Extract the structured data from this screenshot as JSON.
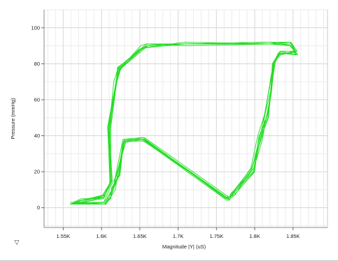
{
  "chart_data": {
    "type": "line",
    "title": "",
    "xlabel": "Magnitude |Y| (uS)",
    "ylabel": "Pressure (mmHg)",
    "xlim": [
      1525,
      1895
    ],
    "ylim": [
      -11,
      110
    ],
    "x_ticks": [
      {
        "value": 1550,
        "label": "1.55K"
      },
      {
        "value": 1600,
        "label": "1.6K"
      },
      {
        "value": 1650,
        "label": "1.65K"
      },
      {
        "value": 1700,
        "label": "1.7K"
      },
      {
        "value": 1750,
        "label": "1.75K"
      },
      {
        "value": 1800,
        "label": "1.8K"
      },
      {
        "value": 1850,
        "label": "1.85K"
      }
    ],
    "y_ticks": [
      {
        "value": 0,
        "label": "0"
      },
      {
        "value": 20,
        "label": "20"
      },
      {
        "value": 40,
        "label": "40"
      },
      {
        "value": 60,
        "label": "60"
      },
      {
        "value": 80,
        "label": "80"
      },
      {
        "value": 100,
        "label": "100"
      }
    ],
    "grid": true,
    "line_color": "#22dd22",
    "series": [
      {
        "x": [
          1562,
          1603,
          1607,
          1612,
          1620,
          1630,
          1657,
          1762,
          1771,
          1799,
          1810,
          1815,
          1822,
          1826,
          1832,
          1852,
          1846,
          1820,
          1711,
          1660,
          1655,
          1624,
          1619,
          1609,
          1613,
          1602,
          1573,
          1562
        ],
        "y": [
          2,
          3,
          7,
          12,
          18,
          38,
          38,
          5,
          7,
          22,
          38,
          50,
          65,
          82,
          85,
          87,
          90,
          91,
          91,
          90,
          88,
          77,
          70,
          45,
          15,
          7,
          4,
          2
        ]
      },
      {
        "x": [
          1564,
          1606,
          1611,
          1617,
          1623,
          1628,
          1654,
          1767,
          1771,
          1796,
          1807,
          1813,
          1819,
          1824,
          1831,
          1856,
          1846,
          1819,
          1708,
          1659,
          1650,
          1625,
          1620,
          1610,
          1611,
          1603,
          1576,
          1564
        ],
        "y": [
          2,
          3,
          5,
          12,
          18,
          38,
          39,
          4,
          8,
          21,
          40,
          52,
          67,
          80,
          86,
          85,
          92,
          91,
          91,
          90,
          88,
          77,
          70,
          44,
          14,
          6,
          3,
          2
        ]
      },
      {
        "x": [
          1559,
          1602,
          1610,
          1614,
          1622,
          1630,
          1656,
          1763,
          1768,
          1799,
          1807,
          1816,
          1822,
          1824,
          1834,
          1852,
          1847,
          1822,
          1707,
          1658,
          1651,
          1626,
          1619,
          1611,
          1611,
          1604,
          1572,
          1559
        ],
        "y": [
          2,
          3,
          6,
          11,
          18,
          38,
          38,
          6,
          6,
          20,
          38,
          51,
          66,
          80,
          86,
          86,
          92,
          92,
          91,
          91,
          90,
          78,
          71,
          44,
          14,
          7,
          4,
          2
        ]
      },
      {
        "x": [
          1562,
          1605,
          1611,
          1615,
          1618,
          1627,
          1653,
          1764,
          1771,
          1800,
          1805,
          1817,
          1821,
          1823,
          1834,
          1855,
          1847,
          1823,
          1708,
          1659,
          1650,
          1622,
          1616,
          1610,
          1614,
          1601,
          1575,
          1562
        ],
        "y": [
          2,
          2,
          7,
          10,
          17,
          36,
          38,
          4,
          6,
          20,
          39,
          52,
          65,
          80,
          85,
          87,
          92,
          91,
          90,
          91,
          88,
          78,
          70,
          44,
          15,
          5,
          3,
          2
        ]
      },
      {
        "x": [
          1563,
          1606,
          1612,
          1618,
          1621,
          1631,
          1657,
          1764,
          1770,
          1795,
          1804,
          1813,
          1819,
          1825,
          1832,
          1854,
          1849,
          1820,
          1709,
          1661,
          1649,
          1622,
          1620,
          1612,
          1612,
          1603,
          1574,
          1563
        ],
        "y": [
          3,
          2,
          6,
          10,
          19,
          37,
          37,
          5,
          7,
          22,
          40,
          52,
          66,
          80,
          86,
          85,
          90,
          92,
          91,
          89,
          88,
          77,
          71,
          44,
          15,
          5,
          5,
          3
        ]
      },
      {
        "x": [
          1559,
          1606,
          1612,
          1613,
          1624,
          1629,
          1655,
          1766,
          1770,
          1796,
          1810,
          1813,
          1822,
          1823,
          1833,
          1853,
          1849,
          1823,
          1709,
          1657,
          1651,
          1621,
          1620,
          1608,
          1611,
          1604,
          1572,
          1559
        ],
        "y": [
          3,
          3,
          6,
          11,
          18,
          37,
          37,
          5,
          8,
          22,
          40,
          51,
          67,
          80,
          87,
          85,
          91,
          91,
          92,
          89,
          88,
          77,
          70,
          45,
          14,
          7,
          3,
          3
        ]
      },
      {
        "x": [
          1564,
          1606,
          1612,
          1615,
          1624,
          1628,
          1656,
          1766,
          1774,
          1796,
          1809,
          1818,
          1821,
          1827,
          1834,
          1855,
          1846,
          1823,
          1707,
          1658,
          1653,
          1623,
          1620,
          1609,
          1613,
          1603,
          1574,
          1564
        ],
        "y": [
          2,
          3,
          5,
          11,
          19,
          37,
          39,
          6,
          7,
          21,
          40,
          50,
          66,
          81,
          87,
          87,
          92,
          92,
          91,
          90,
          88,
          77,
          70,
          45,
          14,
          6,
          4,
          2
        ]
      },
      {
        "x": [
          1560,
          1604,
          1609,
          1616,
          1619,
          1632,
          1655,
          1766,
          1769,
          1798,
          1806,
          1817,
          1822,
          1825,
          1831,
          1856,
          1847,
          1820,
          1707,
          1659,
          1653,
          1621,
          1619,
          1608,
          1613,
          1600,
          1572,
          1560
        ],
        "y": [
          2,
          2,
          7,
          11,
          18,
          37,
          38,
          5,
          8,
          20,
          39,
          50,
          65,
          81,
          86,
          85,
          90,
          92,
          91,
          90,
          88,
          78,
          70,
          45,
          15,
          6,
          4,
          2
        ]
      }
    ]
  },
  "controls": {
    "filter_icon": "▽"
  }
}
